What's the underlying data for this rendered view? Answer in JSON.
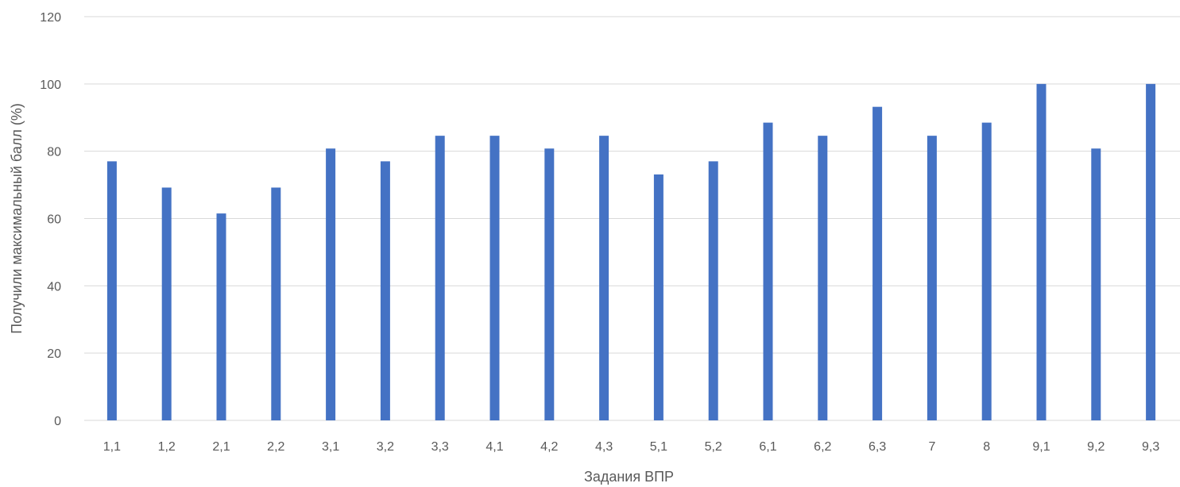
{
  "chart_data": {
    "type": "bar",
    "title": "",
    "xlabel": "Задания ВПР",
    "ylabel": "Получили максимальный балл (%)",
    "ylim": [
      0,
      120
    ],
    "yticks": [
      "0",
      "20",
      "40",
      "60",
      "80",
      "100",
      "120"
    ],
    "grid": true,
    "legend": "none",
    "categories": [
      "1,1",
      "1,2",
      "2,1",
      "2,2",
      "3,1",
      "3,2",
      "3,3",
      "4,1",
      "4,2",
      "4,3",
      "5,1",
      "5,2",
      "6,1",
      "6,2",
      "6,3",
      "7",
      "8",
      "9,1",
      "9,2",
      "9,3"
    ],
    "series": [
      {
        "values": [
          77,
          69.2,
          61.5,
          69.2,
          80.8,
          77,
          84.6,
          84.6,
          80.8,
          84.6,
          73.1,
          77,
          88.5,
          84.6,
          93.2,
          84.6,
          88.5,
          100,
          80.8,
          100
        ]
      }
    ],
    "colors": {
      "bar": "#4472C4",
      "grid": "#D9D9D9",
      "text": "#595959"
    }
  }
}
